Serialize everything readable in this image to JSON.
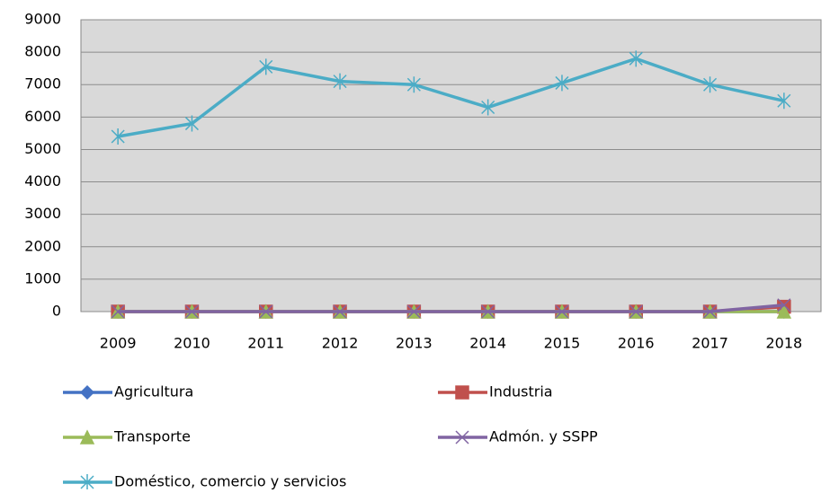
{
  "chart_data": {
    "type": "line",
    "categories": [
      "2009",
      "2010",
      "2011",
      "2012",
      "2013",
      "2014",
      "2015",
      "2016",
      "2017",
      "2018"
    ],
    "series": [
      {
        "name": "Agricultura",
        "color": "#4472c4",
        "marker": "diamond",
        "values": [
          0,
          0,
          0,
          0,
          0,
          0,
          0,
          0,
          0,
          0
        ]
      },
      {
        "name": "Industria",
        "color": "#c0504d",
        "marker": "square",
        "values": [
          0,
          0,
          0,
          0,
          0,
          0,
          0,
          0,
          0,
          150
        ]
      },
      {
        "name": "Transporte",
        "color": "#9bbb59",
        "marker": "triangle",
        "values": [
          0,
          0,
          0,
          0,
          0,
          0,
          0,
          0,
          0,
          0
        ]
      },
      {
        "name": "Admón. y SSPP",
        "color": "#8064a2",
        "marker": "x",
        "values": [
          0,
          0,
          0,
          0,
          0,
          0,
          0,
          0,
          0,
          200
        ]
      },
      {
        "name": "Doméstico, comercio y servicios",
        "color": "#4bacc6",
        "marker": "asterisk",
        "values": [
          5400,
          5800,
          7550,
          7100,
          7000,
          6300,
          7050,
          7800,
          7000,
          6500
        ]
      }
    ],
    "ylim": [
      0,
      9000
    ],
    "yticks": [
      0,
      1000,
      2000,
      3000,
      4000,
      5000,
      6000,
      7000,
      8000,
      9000
    ],
    "grid": true
  }
}
